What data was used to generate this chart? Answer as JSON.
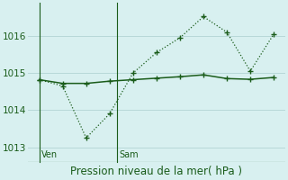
{
  "line1_x": [
    0,
    1,
    2,
    3,
    4,
    5,
    6,
    7,
    8,
    9,
    10
  ],
  "line1_y": [
    1014.82,
    1014.65,
    1013.25,
    1013.9,
    1015.0,
    1015.55,
    1015.95,
    1016.52,
    1016.1,
    1015.05,
    1016.05
  ],
  "line2_x": [
    0,
    1,
    2,
    3,
    4,
    5,
    6,
    7,
    8,
    9,
    10
  ],
  "line2_y": [
    1014.82,
    1014.72,
    1014.72,
    1014.78,
    1014.82,
    1014.86,
    1014.9,
    1014.95,
    1014.85,
    1014.83,
    1014.88
  ],
  "color": "#1a5c1a",
  "background_color": "#d8f0f0",
  "grid_color": "#b8d8d8",
  "yticks": [
    1013,
    1014,
    1015,
    1016
  ],
  "ylim": [
    1012.6,
    1016.9
  ],
  "xlim": [
    -0.5,
    10.5
  ],
  "ven_x": 0,
  "sam_x": 3.3,
  "xlabel": "Pression niveau de la mer( hPa )",
  "xlabel_fontsize": 8.5,
  "tick_fontsize": 7.5,
  "label_color": "#1a5c1a"
}
